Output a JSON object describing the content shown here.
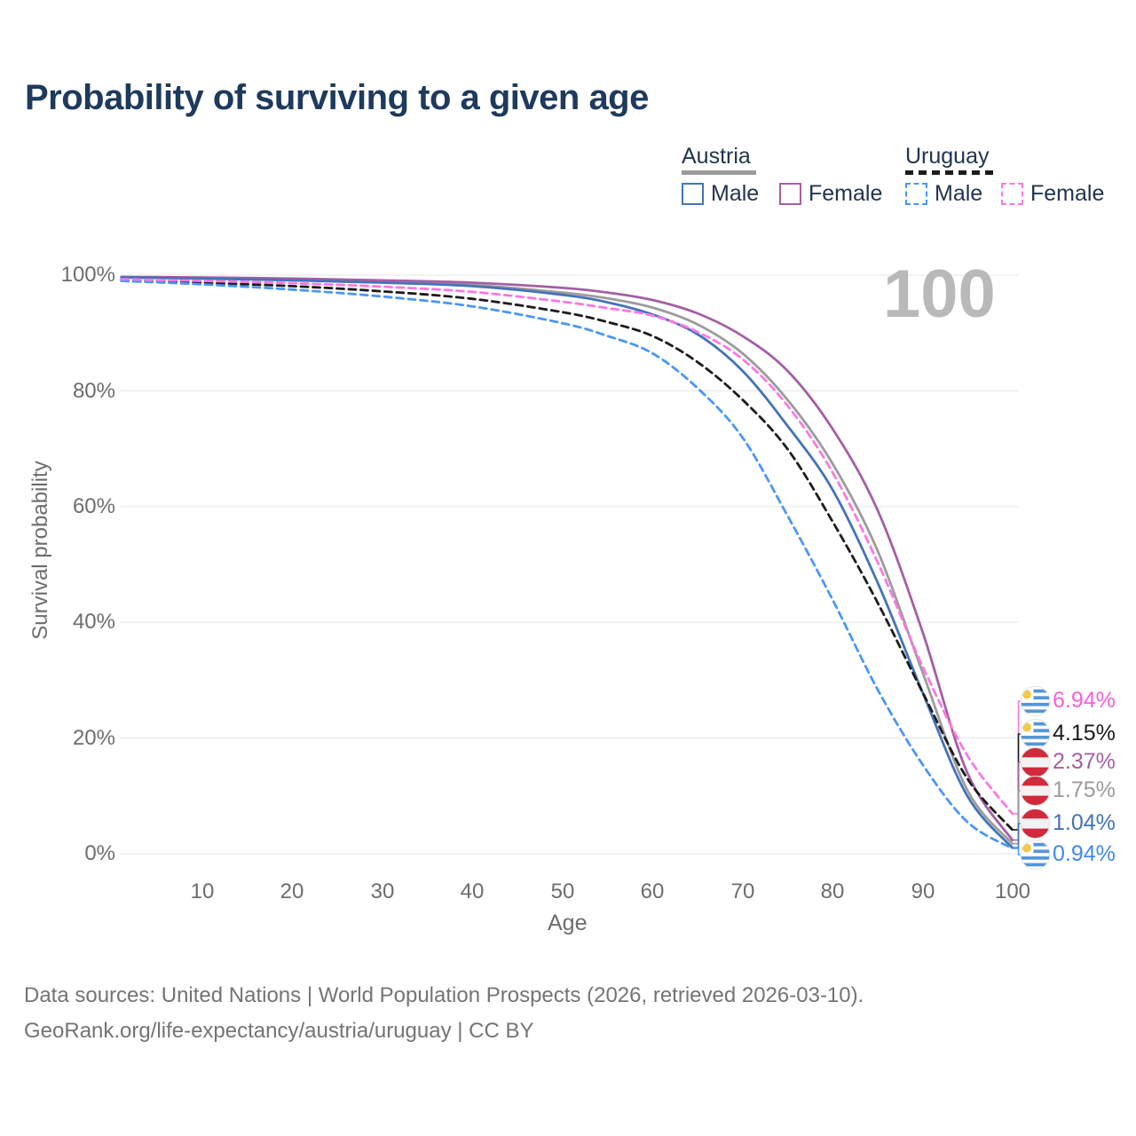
{
  "title": "Probability of surviving to a given age",
  "watermark": "100",
  "legend": {
    "groups": [
      {
        "title": "Austria",
        "line_style": "solid",
        "line_color": "#9c9c9c",
        "items": [
          {
            "label": "Male",
            "color": "#4374b8",
            "style": "solid"
          },
          {
            "label": "Female",
            "color": "#a55fa5",
            "style": "solid"
          }
        ]
      },
      {
        "title": "Uruguay",
        "line_style": "dashed",
        "line_color": "#1c1c1c",
        "items": [
          {
            "label": "Male",
            "color": "#4b97f5",
            "style": "dashed"
          },
          {
            "label": "Female",
            "color": "#fb78e2",
            "style": "dashed"
          }
        ]
      }
    ]
  },
  "axes": {
    "x": {
      "title": "Age",
      "ticks": [
        "10",
        "20",
        "30",
        "40",
        "50",
        "60",
        "70",
        "80",
        "90",
        "100"
      ]
    },
    "y": {
      "title": "Survival probability",
      "ticks_top_to_bottom": [
        "100%",
        "80%",
        "60%",
        "40%",
        "20%",
        "0%"
      ]
    }
  },
  "chart_data": {
    "type": "line",
    "title": "Probability of surviving to a given age",
    "xlabel": "Age",
    "ylabel": "Survival probability",
    "x_range": [
      1,
      100
    ],
    "ylim_percent": [
      0,
      100
    ],
    "grid": "horizontal",
    "ages": [
      1,
      10,
      20,
      30,
      40,
      50,
      55,
      60,
      65,
      70,
      75,
      80,
      85,
      90,
      95,
      100
    ],
    "series": [
      {
        "id": "austria-total",
        "name": "Austria (all)",
        "country": "Austria",
        "style": "solid",
        "color": "#9c9c9c",
        "values": [
          99.6,
          99.5,
          99.2,
          98.8,
          98.3,
          97.0,
          96.0,
          94.4,
          91.5,
          86.5,
          78.5,
          67.5,
          52.5,
          31.5,
          11.0,
          1.75
        ],
        "end_value_label": "1.75%"
      },
      {
        "id": "austria-female",
        "name": "Austria Female",
        "country": "Austria",
        "style": "solid",
        "color": "#a55fa5",
        "values": [
          99.7,
          99.6,
          99.4,
          99.1,
          98.7,
          97.8,
          97.0,
          95.7,
          93.4,
          89.5,
          83.5,
          73.5,
          59.5,
          38.5,
          14.0,
          2.37
        ],
        "end_value_label": "2.37%"
      },
      {
        "id": "austria-male",
        "name": "Austria Male",
        "country": "Austria",
        "style": "solid",
        "color": "#4374b8",
        "values": [
          99.6,
          99.4,
          99.1,
          98.7,
          98.1,
          96.6,
          95.3,
          93.2,
          89.8,
          83.5,
          74.0,
          63.0,
          47.0,
          28.0,
          10.0,
          1.04
        ],
        "end_value_label": "1.04%"
      },
      {
        "id": "uruguay-total",
        "name": "Uruguay (all)",
        "country": "Uruguay",
        "style": "dashed",
        "color": "#1c1c1c",
        "values": [
          99.2,
          98.7,
          98.1,
          97.2,
          95.9,
          93.6,
          91.9,
          89.5,
          85.0,
          78.5,
          70.0,
          57.5,
          43.5,
          28.0,
          13.0,
          4.15
        ],
        "end_value_label": "4.15%"
      },
      {
        "id": "uruguay-male",
        "name": "Uruguay Male",
        "country": "Uruguay",
        "style": "dashed",
        "color": "#4b97f5",
        "values": [
          99.0,
          98.4,
          97.5,
          96.3,
          94.6,
          91.7,
          89.5,
          86.5,
          80.5,
          72.0,
          58.5,
          44.0,
          28.5,
          15.5,
          5.5,
          0.94
        ],
        "end_value_label": "0.94%"
      },
      {
        "id": "uruguay-female",
        "name": "Uruguay Female",
        "country": "Uruguay",
        "style": "dashed",
        "color": "#fb78e2",
        "values": [
          99.3,
          99.0,
          98.6,
          98.0,
          97.1,
          95.4,
          94.3,
          93.0,
          90.2,
          85.5,
          77.5,
          66.0,
          50.5,
          32.5,
          17.0,
          6.94
        ],
        "end_value_label": "6.94%"
      }
    ]
  },
  "end_labels": [
    {
      "value": "6.94%",
      "series": "Uruguay Female",
      "flag": "uruguay",
      "color": "#f95fd6"
    },
    {
      "value": "4.15%",
      "series": "Uruguay (all)",
      "flag": "uruguay",
      "color": "#1a1a1a"
    },
    {
      "value": "2.37%",
      "series": "Austria Female",
      "flag": "austria",
      "color": "#a55fa5"
    },
    {
      "value": "1.75%",
      "series": "Austria (all)",
      "flag": "austria",
      "color": "#9b9b9b"
    },
    {
      "value": "1.04%",
      "series": "Austria Male",
      "flag": "austria",
      "color": "#4173b6"
    },
    {
      "value": "0.94%",
      "series": "Uruguay Male",
      "flag": "uruguay",
      "color": "#4189f2"
    }
  ],
  "flag_colors": {
    "uruguay_blue": "#5596d8",
    "sun_yellow": "#f2c94c",
    "austria_red": "#d2293c",
    "flag_white": "#f2f2f2"
  },
  "footer": {
    "line1": "Data sources: United Nations | World Population Prospects (2026, retrieved 2026-03-10).",
    "line2": "GeoRank.org/life-expectancy/austria/uruguay | CC BY"
  }
}
